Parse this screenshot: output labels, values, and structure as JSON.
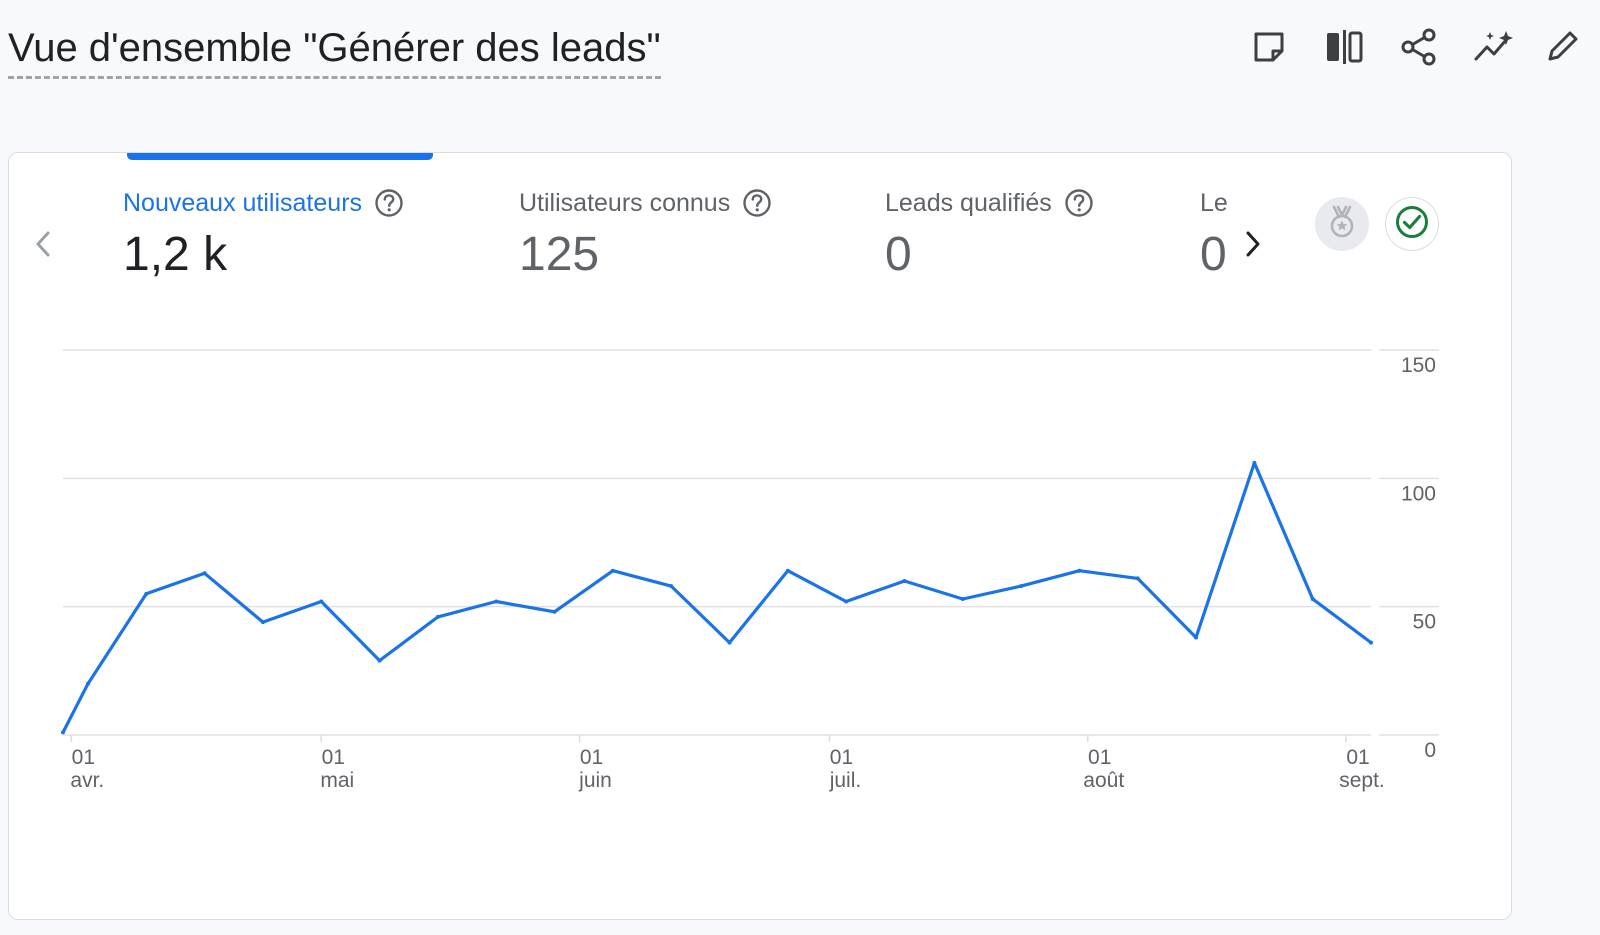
{
  "header": {
    "title": "Vue d'ensemble \"Générer des leads\"",
    "toolbar": [
      {
        "name": "note-icon"
      },
      {
        "name": "compare-icon"
      },
      {
        "name": "share-icon"
      },
      {
        "name": "insights-icon"
      },
      {
        "name": "edit-icon"
      }
    ]
  },
  "card": {
    "metrics": [
      {
        "label": "Nouveaux utilisateurs",
        "value": "1,2 k",
        "active": true
      },
      {
        "label": "Utilisateurs connus",
        "value": "125",
        "active": false
      },
      {
        "label": "Leads qualifiés",
        "value": "0",
        "active": false
      },
      {
        "label": "Leads",
        "value": "0",
        "active": false
      }
    ],
    "badges": [
      {
        "name": "medal-icon",
        "color": "#b0b3b8"
      },
      {
        "name": "check-circle-icon",
        "color": "#188038"
      }
    ]
  },
  "chart_data": {
    "type": "line",
    "series": [
      {
        "color": "#1a73e8",
        "x": [
          "2023-03-31",
          "2023-04-03",
          "2023-04-10",
          "2023-04-17",
          "2023-04-24",
          "2023-05-01",
          "2023-05-08",
          "2023-05-15",
          "2023-05-22",
          "2023-05-29",
          "2023-06-05",
          "2023-06-12",
          "2023-06-19",
          "2023-06-26",
          "2023-07-03",
          "2023-07-10",
          "2023-07-17",
          "2023-07-24",
          "2023-07-31",
          "2023-08-07",
          "2023-08-14",
          "2023-08-21",
          "2023-08-28",
          "2023-09-04"
        ],
        "y": [
          1,
          20,
          55,
          63,
          44,
          52,
          29,
          46,
          52,
          48,
          64,
          58,
          36,
          64,
          52,
          60,
          53,
          58,
          64,
          61,
          38,
          106,
          53,
          36
        ]
      }
    ],
    "x_range": [
      "2023-03-31",
      "2023-09-04"
    ],
    "ylim": [
      0,
      150
    ],
    "y_ticks": [
      0,
      50,
      100,
      150
    ],
    "x_ticks": [
      {
        "date": "2023-04-01",
        "day": "01",
        "month": "avr."
      },
      {
        "date": "2023-05-01",
        "day": "01",
        "month": "mai"
      },
      {
        "date": "2023-06-01",
        "day": "01",
        "month": "juin"
      },
      {
        "date": "2023-07-01",
        "day": "01",
        "month": "juil."
      },
      {
        "date": "2023-08-01",
        "day": "01",
        "month": "août"
      },
      {
        "date": "2023-09-01",
        "day": "01",
        "month": "sept."
      }
    ],
    "y_axis_side": "right",
    "grid": true
  }
}
